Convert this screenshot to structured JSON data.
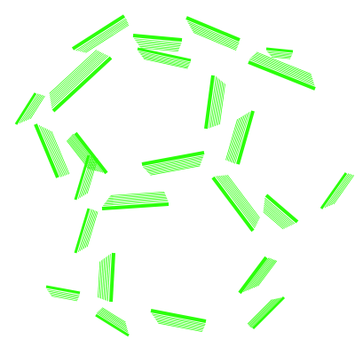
{
  "image": {
    "subject": "hatched-green-cell-pattern",
    "background": "#ffffff",
    "accent": "#2bff0a"
  }
}
